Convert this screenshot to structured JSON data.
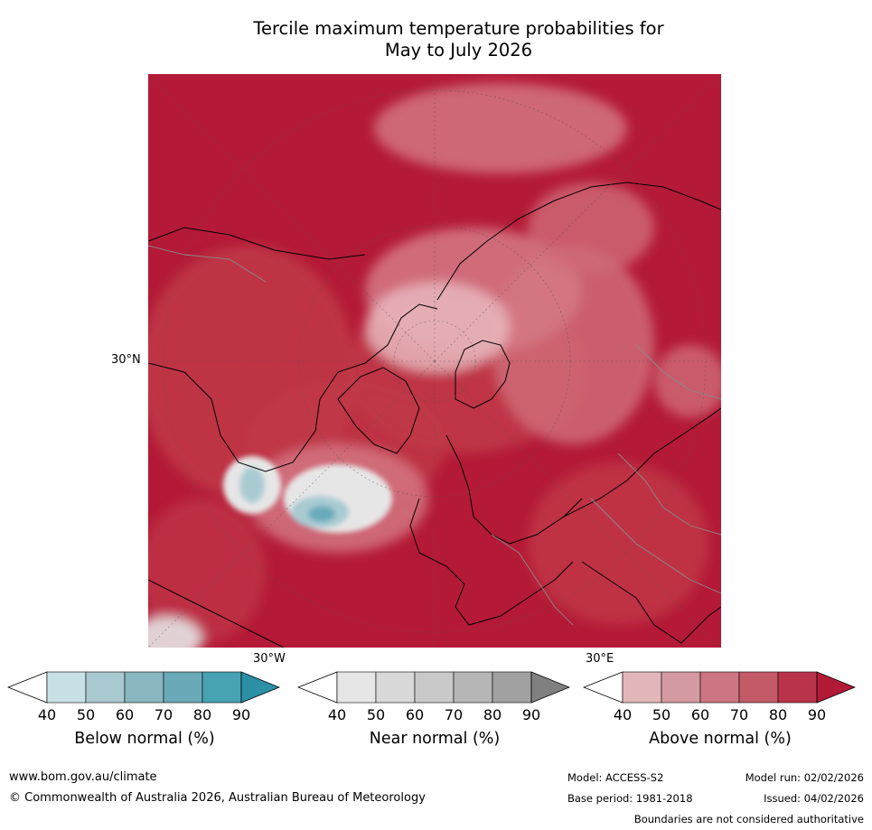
{
  "title_line1": "Tercile maximum temperature probabilities for",
  "title_line2": "May to July 2026",
  "map": {
    "lat_label": "30°N",
    "lon_label_west": "30°W",
    "lon_label_east": "30°E",
    "colors": {
      "above_dark": "#b41a37",
      "above_mid": "#c03848",
      "above_light": "#d57a86",
      "above_pale": "#e7b7bd",
      "near_light": "#e6e6e6",
      "below_light": "#a8cbd2",
      "below_mid": "#69abbb",
      "coast": "#000000",
      "border": "#8a8a8a"
    }
  },
  "legends": [
    {
      "title": "Below normal (%)",
      "ticks": [
        "40",
        "50",
        "60",
        "70",
        "80",
        "90"
      ],
      "colors": [
        "#ffffff",
        "#c8e1e6",
        "#a8c9cf",
        "#89b7bf",
        "#6aa9b8",
        "#47a2b2",
        "#2b8fa6"
      ]
    },
    {
      "title": "Near normal (%)",
      "ticks": [
        "40",
        "50",
        "60",
        "70",
        "80",
        "90"
      ],
      "colors": [
        "#ffffff",
        "#e6e6e6",
        "#d8d8d8",
        "#c9c9c9",
        "#b6b6b6",
        "#a1a1a1",
        "#808080"
      ]
    },
    {
      "title": "Above normal (%)",
      "ticks": [
        "40",
        "50",
        "60",
        "70",
        "80",
        "90"
      ],
      "colors": [
        "#ffffff",
        "#e2b6bb",
        "#d49aa1",
        "#cd7582",
        "#c45a68",
        "#b9344b",
        "#b21a38"
      ]
    }
  ],
  "footer": {
    "website": "www.bom.gov.au/climate",
    "copyright": "© Commonwealth of Australia 2026, Australian Bureau of Meteorology",
    "model": "Model: ACCESS-S2",
    "model_run": "Model run: 02/02/2026",
    "base_period": "Base period: 1981-2018",
    "issued": "Issued: 04/02/2026",
    "disclaimer": "Boundaries are not considered authoritative"
  }
}
